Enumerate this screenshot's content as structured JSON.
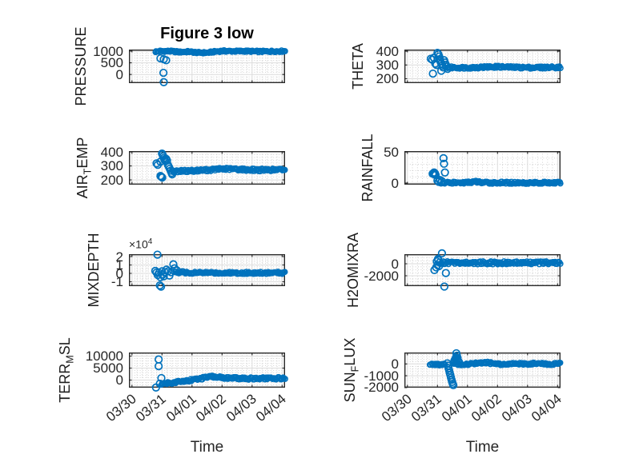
{
  "figure": {
    "title": "Figure 3 low",
    "xlabel": "Time",
    "background": "#ffffff",
    "accent_color": "#0072BD",
    "axis_color": "#262626",
    "grid_color": "#dcdcdc",
    "minor_grid_color": "#c6c6c6"
  },
  "x_axis": {
    "tick_labels": [
      "03/30",
      "03/31",
      "04/01",
      "04/02",
      "04/03",
      "04/04"
    ],
    "tick_values": [
      0,
      1,
      2,
      3,
      4,
      5
    ],
    "xlim": [
      -0.1,
      5.1
    ],
    "minor_step": 0.16667
  },
  "chart_data": [
    {
      "type": "scatter",
      "name": "PRESSURE",
      "ylabel_display": [
        {
          "text": "PRESSURE",
          "sub": false
        }
      ],
      "ylim": [
        -370,
        1068
      ],
      "yticks": [
        {
          "v": 0,
          "label": "0"
        },
        {
          "v": 500,
          "label": "500"
        },
        {
          "v": 1000,
          "label": "1000"
        }
      ],
      "yminor_step": 100,
      "exponent": null,
      "label_offset": -60,
      "bands": [
        {
          "x_start": 0.78,
          "x_end": 5.1,
          "thickness": 70,
          "anchors": [
            [
              0.78,
              975
            ],
            [
              0.95,
              1000
            ],
            [
              1.3,
              995
            ],
            [
              1.6,
              960
            ],
            [
              1.9,
              980
            ],
            [
              2.2,
              935
            ],
            [
              2.5,
              930
            ],
            [
              2.8,
              985
            ],
            [
              3.0,
              1005
            ],
            [
              3.4,
              995
            ],
            [
              3.8,
              1000
            ],
            [
              4.2,
              985
            ],
            [
              4.6,
              990
            ],
            [
              5.1,
              1000
            ]
          ]
        }
      ],
      "points": [
        [
          0.95,
          690
        ],
        [
          1.06,
          655
        ],
        [
          1.14,
          610
        ],
        [
          1.05,
          70
        ],
        [
          1.06,
          -330
        ]
      ]
    },
    {
      "type": "scatter",
      "name": "THETA",
      "ylabel_display": [
        {
          "text": "THETA",
          "sub": false
        }
      ],
      "ylim": [
        168,
        412
      ],
      "yticks": [
        {
          "v": 200,
          "label": "200"
        },
        {
          "v": 300,
          "label": "300"
        },
        {
          "v": 400,
          "label": "400"
        }
      ],
      "yminor_step": 20,
      "exponent": null,
      "label_offset": -58,
      "bands": [
        {
          "x_start": 1.35,
          "x_end": 5.1,
          "thickness": 16,
          "anchors": [
            [
              1.35,
              282
            ],
            [
              2.0,
              280
            ],
            [
              2.5,
              284
            ],
            [
              3.0,
              287
            ],
            [
              3.5,
              283
            ],
            [
              4.2,
              281
            ],
            [
              5.1,
              284
            ]
          ]
        }
      ],
      "points": [
        [
          0.78,
          345
        ],
        [
          0.83,
          338
        ],
        [
          0.88,
          352
        ],
        [
          0.93,
          310
        ],
        [
          0.97,
          300
        ],
        [
          1.0,
          388
        ],
        [
          1.03,
          378
        ],
        [
          1.06,
          362
        ],
        [
          1.08,
          340
        ],
        [
          1.1,
          325
        ],
        [
          1.13,
          310
        ],
        [
          1.16,
          295
        ],
        [
          1.19,
          283
        ],
        [
          1.22,
          335
        ],
        [
          1.25,
          318
        ],
        [
          1.28,
          302
        ],
        [
          1.31,
          288
        ],
        [
          1.34,
          272
        ],
        [
          0.85,
          237
        ],
        [
          1.13,
          258
        ]
      ]
    },
    {
      "type": "scatter",
      "name": "AIR_TEMP",
      "ylabel_display": [
        {
          "text": "AIR",
          "sub": false
        },
        {
          "text": "T",
          "sub": true
        },
        {
          "text": "EMP",
          "sub": false
        }
      ],
      "ylim": [
        166,
        406
      ],
      "yticks": [
        {
          "v": 200,
          "label": "200"
        },
        {
          "v": 300,
          "label": "300"
        },
        {
          "v": 400,
          "label": "400"
        }
      ],
      "yminor_step": 20,
      "exponent": null,
      "label_offset": -58,
      "bands": [
        {
          "x_start": 1.35,
          "x_end": 5.1,
          "thickness": 18,
          "anchors": [
            [
              1.35,
              262
            ],
            [
              1.8,
              264
            ],
            [
              2.2,
              267
            ],
            [
              2.6,
              271
            ],
            [
              3.0,
              279
            ],
            [
              3.4,
              277
            ],
            [
              3.8,
              273
            ],
            [
              4.3,
              271
            ],
            [
              5.1,
              273
            ]
          ]
        }
      ],
      "points": [
        [
          0.82,
          318
        ],
        [
          0.86,
          308
        ],
        [
          0.95,
          330
        ],
        [
          1.0,
          388
        ],
        [
          1.02,
          380
        ],
        [
          1.04,
          368
        ],
        [
          1.06,
          356
        ],
        [
          1.08,
          344
        ],
        [
          1.11,
          336
        ],
        [
          1.14,
          350
        ],
        [
          1.17,
          338
        ],
        [
          1.2,
          306
        ],
        [
          1.23,
          293
        ],
        [
          1.26,
          280
        ],
        [
          1.29,
          266
        ],
        [
          1.32,
          250
        ],
        [
          1.34,
          240
        ],
        [
          0.95,
          228
        ],
        [
          0.98,
          222
        ],
        [
          1.01,
          217
        ]
      ]
    },
    {
      "type": "scatter",
      "name": "RAINFALL",
      "ylabel_display": [
        {
          "text": "RAINFALL",
          "sub": false
        }
      ],
      "ylim": [
        -2.5,
        51.5
      ],
      "yticks": [
        {
          "v": 0,
          "label": "0"
        },
        {
          "v": 50,
          "label": "50"
        }
      ],
      "yminor_step": 10,
      "exponent": null,
      "label_offset": -46,
      "bands": [
        {
          "x_start": 1.18,
          "x_end": 5.1,
          "thickness": 3.5,
          "anchors": [
            [
              1.18,
              0.3
            ],
            [
              2.0,
              0.8
            ],
            [
              2.25,
              2.5
            ],
            [
              2.5,
              0.8
            ],
            [
              3.0,
              0.5
            ],
            [
              5.1,
              0.5
            ]
          ]
        }
      ],
      "points": [
        [
          0.84,
          15
        ],
        [
          0.87,
          16
        ],
        [
          0.9,
          14
        ],
        [
          0.92,
          15.5
        ],
        [
          0.94,
          13
        ],
        [
          0.89,
          17
        ],
        [
          1.2,
          40
        ],
        [
          1.22,
          31
        ],
        [
          1.25,
          17
        ],
        [
          1.0,
          4
        ],
        [
          1.04,
          2
        ],
        [
          1.08,
          5
        ],
        [
          1.12,
          1
        ],
        [
          1.15,
          3
        ]
      ]
    },
    {
      "type": "scatter",
      "name": "MIXDEPTH",
      "ylabel_display": [
        {
          "text": "MIXDEPTH",
          "sub": false
        }
      ],
      "ylim": [
        -15200,
        22900
      ],
      "yticks": [
        {
          "v": -10000,
          "label": "-1"
        },
        {
          "v": 0,
          "label": "0"
        },
        {
          "v": 10000,
          "label": "1"
        },
        {
          "v": 20000,
          "label": "2"
        }
      ],
      "yminor_step": 2000,
      "exponent": "×10^4",
      "label_offset": -44,
      "bands": [
        {
          "x_start": 1.45,
          "x_end": 5.1,
          "thickness": 2600,
          "anchors": [
            [
              1.45,
              800
            ],
            [
              1.6,
              1500
            ],
            [
              2.0,
              600
            ],
            [
              2.5,
              900
            ],
            [
              3.0,
              600
            ],
            [
              3.5,
              700
            ],
            [
              4.0,
              600
            ],
            [
              4.5,
              600
            ],
            [
              5.1,
              700
            ]
          ]
        }
      ],
      "points": [
        [
          0.85,
          22300
        ],
        [
          0.78,
          3000
        ],
        [
          0.82,
          1000
        ],
        [
          0.86,
          -2000
        ],
        [
          0.9,
          500
        ],
        [
          0.95,
          -4500
        ],
        [
          1.0,
          2500
        ],
        [
          1.03,
          -1200
        ],
        [
          1.06,
          -3500
        ],
        [
          1.1,
          1500
        ],
        [
          1.15,
          4500
        ],
        [
          1.2,
          2500
        ],
        [
          1.25,
          -2500
        ],
        [
          1.3,
          1500
        ],
        [
          1.38,
          10800
        ],
        [
          1.42,
          6000
        ],
        [
          1.5,
          3500
        ],
        [
          0.93,
          -14300
        ],
        [
          0.97,
          -15800
        ]
      ]
    },
    {
      "type": "scatter",
      "name": "H2OMIXRA",
      "ylabel_display": [
        {
          "text": "H2OMIXRA",
          "sub": false
        }
      ],
      "ylim": [
        -3730,
        1600
      ],
      "yticks": [
        {
          "v": -2000,
          "label": "-2000"
        },
        {
          "v": 0,
          "label": "0"
        }
      ],
      "yminor_step": 500,
      "exponent": null,
      "label_offset": -64,
      "bands": [
        {
          "x_start": 1.1,
          "x_end": 5.1,
          "thickness": 500,
          "anchors": [
            [
              1.1,
              180
            ],
            [
              2.0,
              150
            ],
            [
              3.0,
              170
            ],
            [
              4.0,
              150
            ],
            [
              5.1,
              160
            ]
          ]
        }
      ],
      "points": [
        [
          1.15,
          1750
        ],
        [
          0.9,
          -1050
        ],
        [
          1.28,
          -1550
        ],
        [
          1.23,
          -3800
        ],
        [
          0.96,
          -600
        ],
        [
          0.98,
          400
        ],
        [
          1.0,
          -200
        ],
        [
          1.03,
          600
        ],
        [
          1.07,
          200
        ],
        [
          1.02,
          800
        ],
        [
          1.05,
          -400
        ]
      ]
    },
    {
      "type": "scatter",
      "name": "TERR_MSL",
      "ylabel_display": [
        {
          "text": "TERR",
          "sub": false
        },
        {
          "text": "M",
          "sub": true
        },
        {
          "text": "SL",
          "sub": false
        }
      ],
      "ylim": [
        -3170,
        11500
      ],
      "yticks": [
        {
          "v": 0,
          "label": "0"
        },
        {
          "v": 5000,
          "label": "5000"
        },
        {
          "v": 10000,
          "label": "10000"
        }
      ],
      "yminor_step": 1000,
      "exponent": null,
      "label_offset": -80,
      "bands": [
        {
          "x_start": 0.98,
          "x_end": 5.1,
          "thickness": 1000,
          "anchors": [
            [
              0.98,
              -1500
            ],
            [
              1.3,
              -1100
            ],
            [
              1.7,
              -500
            ],
            [
              2.1,
              250
            ],
            [
              2.5,
              1100
            ],
            [
              2.7,
              1400
            ],
            [
              2.9,
              1150
            ],
            [
              3.2,
              850
            ],
            [
              3.6,
              700
            ],
            [
              4.0,
              650
            ],
            [
              4.5,
              700
            ],
            [
              5.1,
              780
            ]
          ]
        }
      ],
      "points": [
        [
          0.89,
          8600
        ],
        [
          0.89,
          5800
        ],
        [
          0.98,
          830
        ],
        [
          0.8,
          -3100
        ],
        [
          0.93,
          -1500
        ]
      ]
    },
    {
      "type": "scatter",
      "name": "SUN_FLUX",
      "ylabel_display": [
        {
          "text": "SUN",
          "sub": false
        },
        {
          "text": "F",
          "sub": true
        },
        {
          "text": "LUX",
          "sub": false
        }
      ],
      "ylim": [
        -2010,
        970
      ],
      "yticks": [
        {
          "v": -2000,
          "label": "-2000"
        },
        {
          "v": -1000,
          "label": "-1000"
        },
        {
          "v": 0,
          "label": "0"
        }
      ],
      "yminor_step": 200,
      "exponent": null,
      "label_offset": -68,
      "bands": [
        {
          "x_start": 0.75,
          "x_end": 1.25,
          "thickness": 160,
          "anchors": [
            [
              0.75,
              -40
            ],
            [
              1.0,
              -60
            ],
            [
              1.25,
              -40
            ]
          ]
        },
        {
          "x_start": 1.55,
          "x_end": 5.1,
          "thickness": 170,
          "anchors": [
            [
              1.55,
              30
            ],
            [
              1.9,
              -70
            ],
            [
              2.2,
              30
            ],
            [
              2.6,
              120
            ],
            [
              2.8,
              60
            ],
            [
              3.2,
              -30
            ],
            [
              3.5,
              60
            ],
            [
              3.9,
              -10
            ],
            [
              4.3,
              40
            ],
            [
              4.7,
              -20
            ],
            [
              5.1,
              30
            ]
          ]
        }
      ],
      "points": [
        [
          1.33,
          50
        ],
        [
          1.35,
          -150
        ],
        [
          1.37,
          -350
        ],
        [
          1.39,
          -550
        ],
        [
          1.41,
          -750
        ],
        [
          1.43,
          -950
        ],
        [
          1.45,
          -1150
        ],
        [
          1.47,
          -1350
        ],
        [
          1.49,
          -1520
        ],
        [
          1.51,
          -1680
        ],
        [
          1.53,
          -1800
        ],
        [
          1.55,
          150
        ],
        [
          1.57,
          300
        ],
        [
          1.6,
          450
        ],
        [
          1.62,
          560
        ],
        [
          1.63,
          900
        ],
        [
          1.65,
          700
        ],
        [
          1.67,
          500
        ],
        [
          1.64,
          350
        ],
        [
          1.69,
          250
        ],
        [
          1.72,
          150
        ],
        [
          1.58,
          200
        ]
      ]
    }
  ]
}
